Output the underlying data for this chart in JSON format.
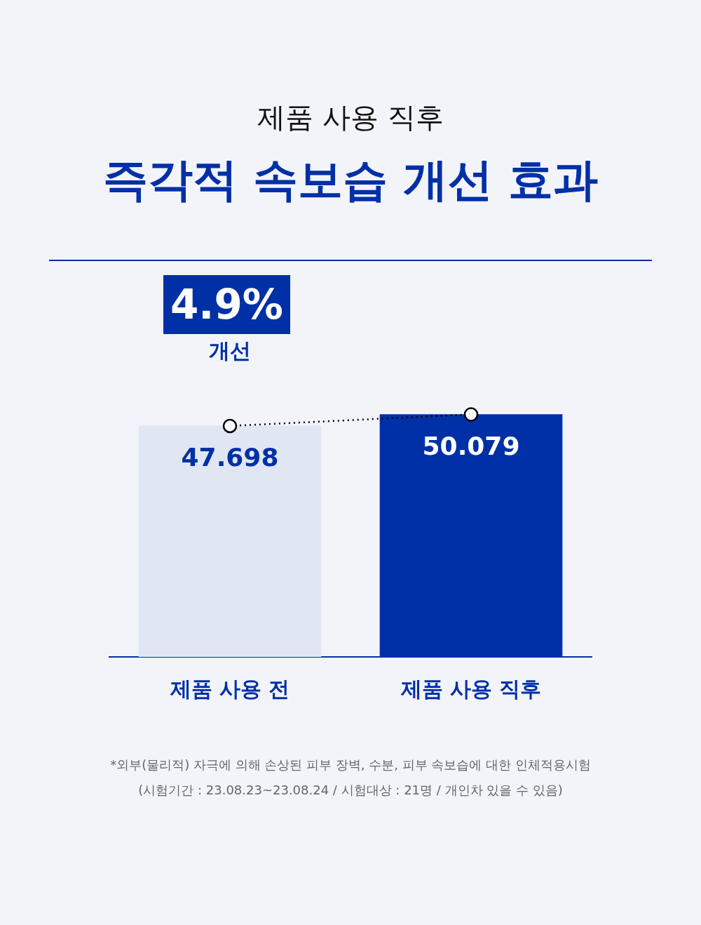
{
  "chart_data": {
    "type": "bar",
    "subtitle": "제품 사용 직후",
    "title": "즉각적 속보습 개선 효과",
    "categories": [
      "제품 사용 전",
      "제품 사용 직후"
    ],
    "series": [
      {
        "colors": [
          "#e1e6f3",
          "#0030a6"
        ],
        "values": [
          47.698,
          50.079
        ],
        "value_labels": [
          "47.698",
          "50.079"
        ]
      },
      {
        "type": "line",
        "color": "#000000",
        "values": [
          47.698,
          50.079
        ]
      }
    ],
    "marker": "circle",
    "line_style": "dotted",
    "grid": false,
    "legend": false,
    "tick_labels": "x",
    "annotations": [
      "4.9%",
      "개선",
      "*외부(물리적) 자극에 의해 손상된 피부 장벽, 수분, 피부 속보습에 대한 인체적용시험",
      "(시험기간 : 23.08.23~23.08.24 / 시험대상 : 21명 / 개인차 있을 수 있음)"
    ]
  }
}
